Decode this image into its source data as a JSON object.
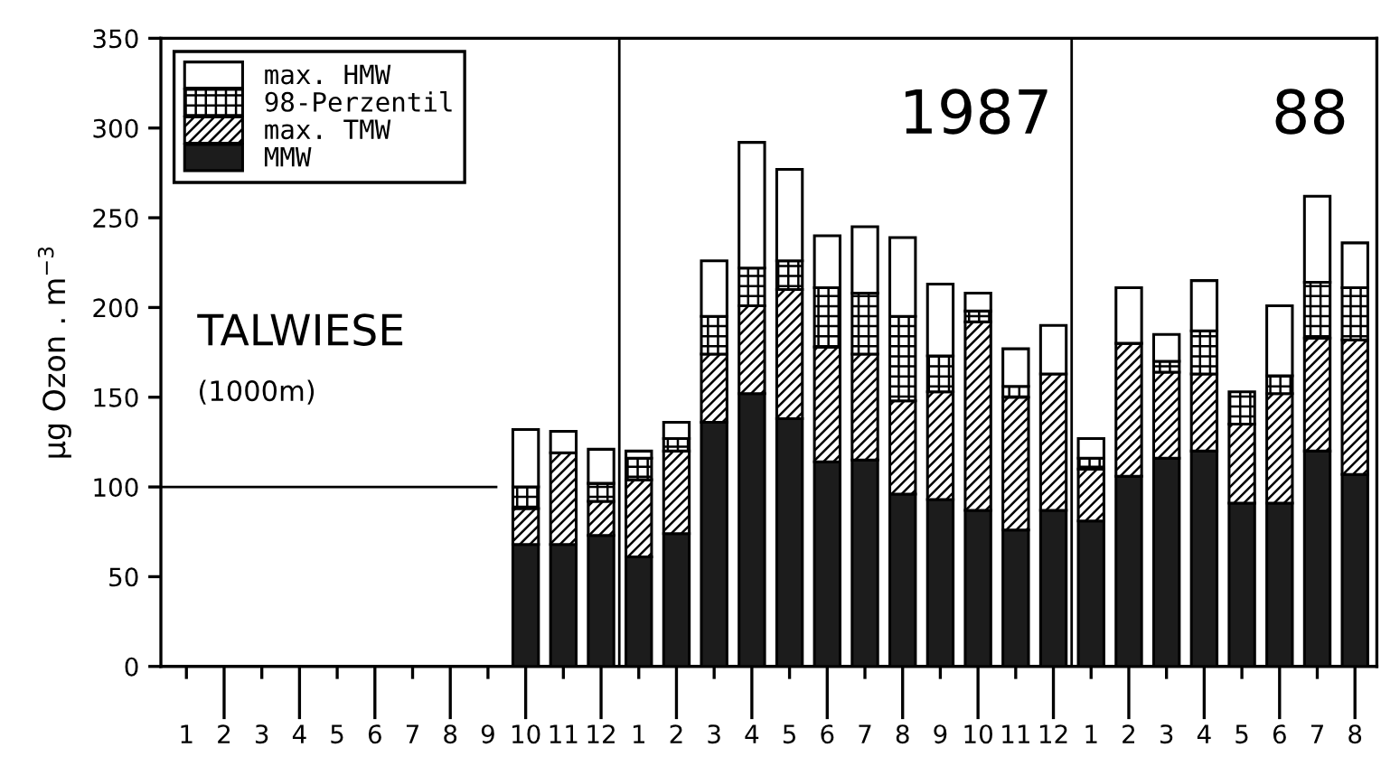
{
  "chart_data": {
    "type": "bar",
    "stacked": true,
    "ylabel": "µg Ozon . m$^{−3}$",
    "annotations": [
      "TALWIESE",
      "(1000m)",
      "1987",
      "88"
    ],
    "x": [
      "1986-10",
      "1986-11",
      "1986-12",
      "1987-01",
      "1987-02",
      "1987-03",
      "1987-04",
      "1987-05",
      "1987-06",
      "1987-07",
      "1987-08",
      "1987-09",
      "1987-10",
      "1987-11",
      "1987-12",
      "1988-01",
      "1988-02",
      "1988-03",
      "1988-04",
      "1988-05",
      "1988-06",
      "1988-07",
      "1988-08"
    ],
    "series": [
      {
        "name": "MMW",
        "color": "#1c1c1c",
        "values": [
          68,
          68,
          73,
          61,
          74,
          136,
          152,
          138,
          114,
          115,
          96,
          93,
          87,
          76,
          87,
          81,
          106,
          116,
          120,
          91,
          91,
          120,
          107
        ]
      },
      {
        "name": "max. TMW",
        "color": "#000000",
        "values": [
          20,
          51,
          19,
          43,
          46,
          38,
          49,
          72,
          64,
          59,
          52,
          60,
          105,
          74,
          76,
          29,
          74,
          48,
          43,
          44,
          61,
          63,
          75
        ]
      },
      {
        "name": "98-Perzentil",
        "color": "#000000",
        "values": [
          12,
          null,
          10,
          12,
          7,
          21,
          21,
          16,
          33,
          34,
          47,
          20,
          6,
          6,
          null,
          6,
          null,
          6,
          24,
          18,
          10,
          31,
          29
        ]
      },
      {
        "name": "max. HMW",
        "color": "#ffffff",
        "values": [
          32,
          12,
          19,
          4,
          9,
          31,
          70,
          51,
          29,
          37,
          44,
          40,
          10,
          21,
          27,
          11,
          31,
          15,
          28,
          null,
          39,
          48,
          25
        ]
      }
    ],
    "xlim": [
      "1985-12-11",
      "1988-08-19"
    ],
    "xticks": [
      {
        "value": "1986-01",
        "label": "1"
      },
      {
        "value": "1986-02",
        "label": "2"
      },
      {
        "value": "1986-03",
        "label": "3"
      },
      {
        "value": "1986-04",
        "label": "4"
      },
      {
        "value": "1986-05",
        "label": "5"
      },
      {
        "value": "1986-06",
        "label": "6"
      },
      {
        "value": "1986-07",
        "label": "7"
      },
      {
        "value": "1986-08",
        "label": "8"
      },
      {
        "value": "1986-09",
        "label": "9"
      },
      {
        "value": "1986-10",
        "label": "10"
      },
      {
        "value": "1986-11",
        "label": "11"
      },
      {
        "value": "1986-12",
        "label": "12"
      },
      {
        "value": "1987-01",
        "label": "1"
      },
      {
        "value": "1987-02",
        "label": "2"
      },
      {
        "value": "1987-03",
        "label": "3"
      },
      {
        "value": "1987-04",
        "label": "4"
      },
      {
        "value": "1987-05",
        "label": "5"
      },
      {
        "value": "1987-06",
        "label": "6"
      },
      {
        "value": "1987-07",
        "label": "7"
      },
      {
        "value": "1987-08",
        "label": "8"
      },
      {
        "value": "1987-09",
        "label": "9"
      },
      {
        "value": "1987-10",
        "label": "10"
      },
      {
        "value": "1987-11",
        "label": "11"
      },
      {
        "value": "1987-12",
        "label": "12"
      },
      {
        "value": "1988-01",
        "label": "1"
      },
      {
        "value": "1988-02",
        "label": "2"
      },
      {
        "value": "1988-03",
        "label": "3"
      },
      {
        "value": "1988-04",
        "label": "4"
      },
      {
        "value": "1988-05",
        "label": "5"
      },
      {
        "value": "1988-06",
        "label": "6"
      },
      {
        "value": "1988-07",
        "label": "7"
      },
      {
        "value": "1988-08",
        "label": "8"
      }
    ],
    "ylim": [
      0,
      350
    ],
    "yticks": [
      0,
      50,
      100,
      150,
      200,
      250,
      300,
      350
    ],
    "ref_lines": [
      {
        "axis": "y",
        "value": 100
      },
      {
        "axis": "x",
        "value": "1986-12-16"
      },
      {
        "axis": "x",
        "value": "1987-12-16"
      }
    ],
    "legend": "top left",
    "grid": false
  }
}
